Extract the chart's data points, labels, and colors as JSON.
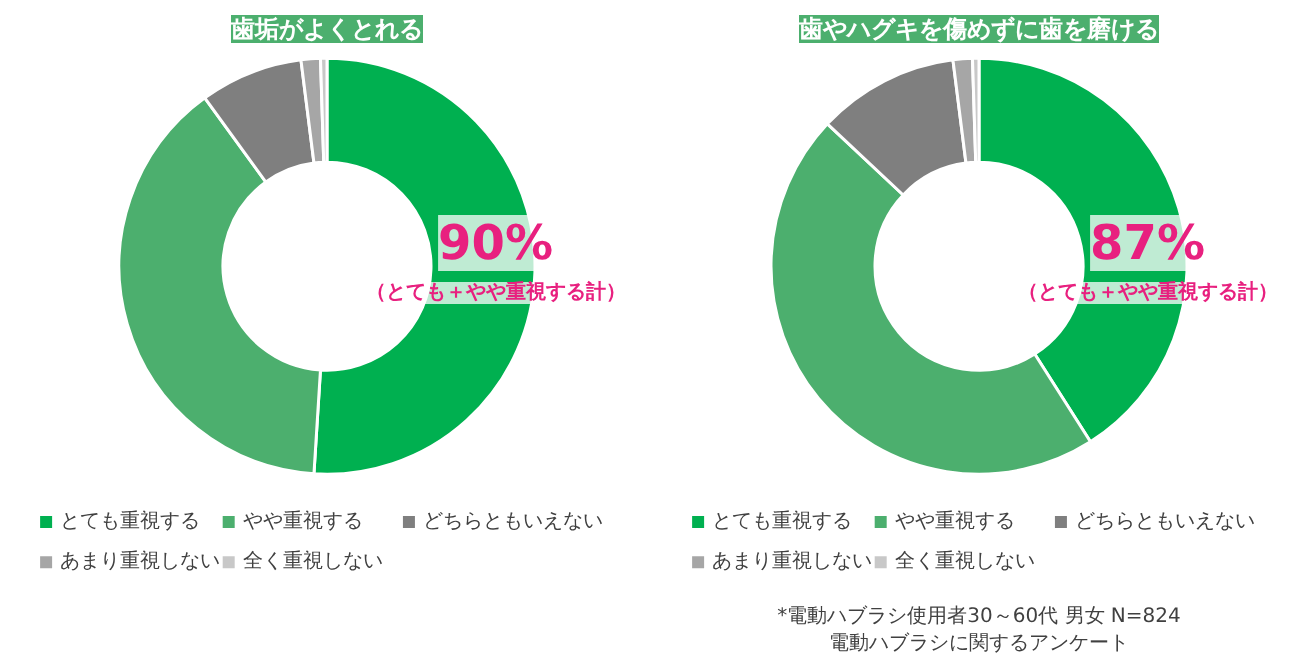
{
  "chart_data": [
    {
      "type": "donut",
      "title": "歯垢がよくとれる",
      "categories": [
        "とても重視する",
        "やや重視する",
        "どちらともいえない",
        "あまり重視しない",
        "全く重視しない"
      ],
      "values": [
        51,
        39,
        8,
        1.5,
        0.5
      ],
      "colors": [
        "#00b050",
        "#4caf6e",
        "#7f7f7f",
        "#a6a6a6",
        "#c8c8c8"
      ],
      "legend": "bottom",
      "annotations": [
        "90%",
        "（とても＋やや重視する計）"
      ]
    },
    {
      "type": "donut",
      "title": "歯やハグキを傷めずに歯を磨ける",
      "categories": [
        "とても重視する",
        "やや重視する",
        "どちらともいえない",
        "あまり重視しない",
        "全く重視しない"
      ],
      "values": [
        41,
        46,
        11,
        1.5,
        0.5
      ],
      "colors": [
        "#00b050",
        "#4caf6e",
        "#7f7f7f",
        "#a6a6a6",
        "#c8c8c8"
      ],
      "legend": "bottom",
      "annotations": [
        "87%",
        "（とても＋やや重視する計）",
        "*電動ハブラシ使用者30～60代 男女 N=824 電動ハブラシに関するアンケート"
      ]
    }
  ]
}
